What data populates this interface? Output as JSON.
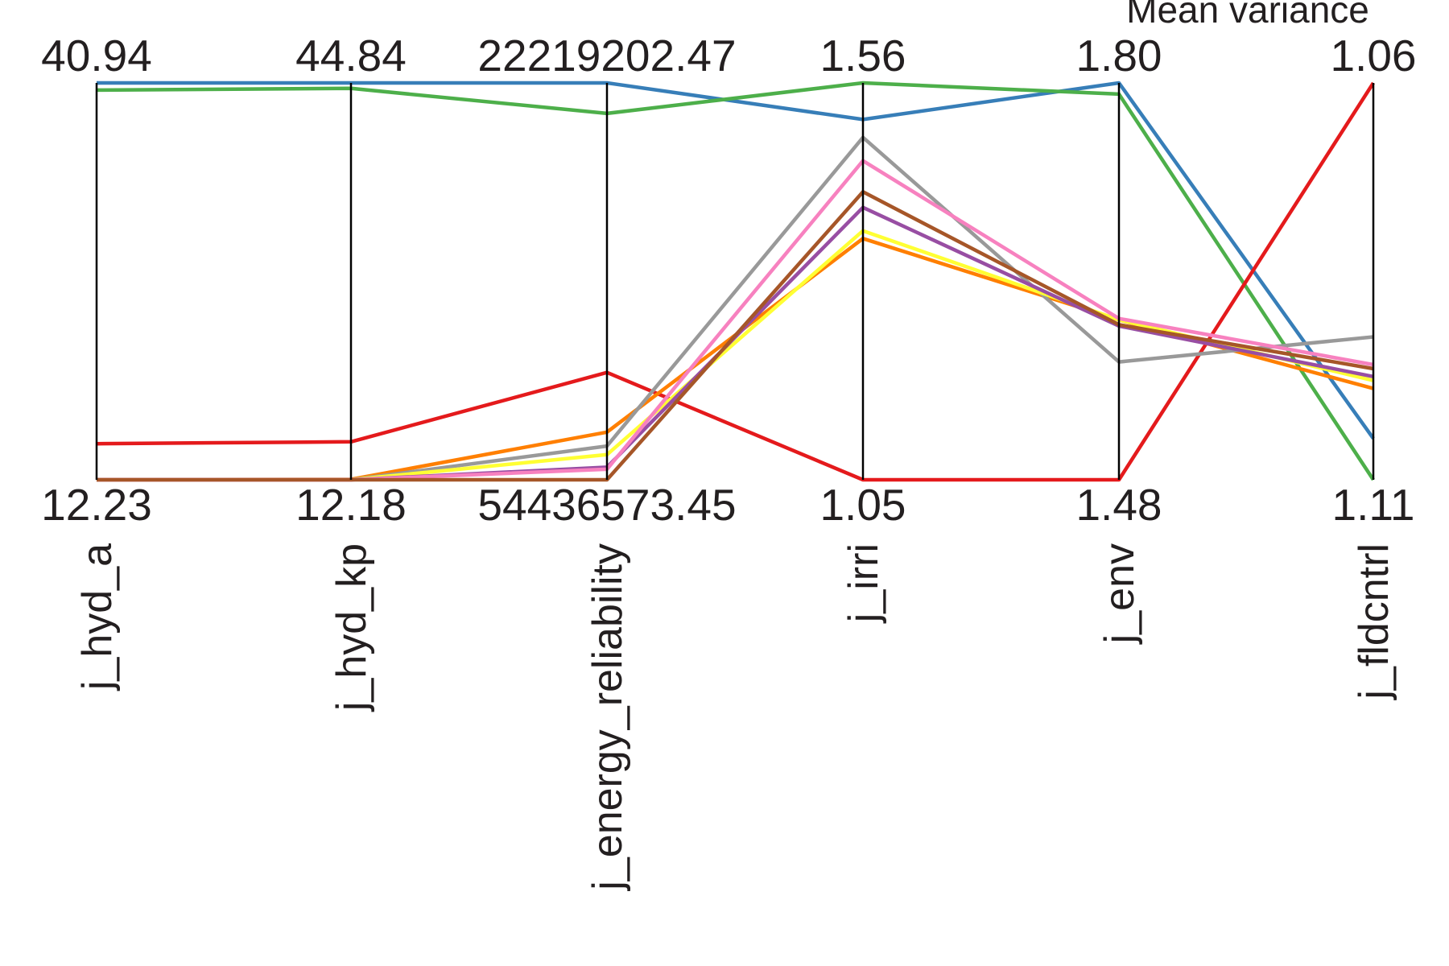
{
  "chart_data": {
    "type": "parallel-coordinates",
    "title": "Mean variance",
    "axes": [
      {
        "name": "j_hyd_a",
        "max_label": "40.94",
        "min_label": "12.23",
        "max": 40.94,
        "min": 12.23
      },
      {
        "name": "j_hyd_kp",
        "max_label": "44.84",
        "min_label": "12.18",
        "max": 44.84,
        "min": 12.18
      },
      {
        "name": "j_energy_reliability",
        "max_label": "22219202.47",
        "min_label": "54436573.45",
        "max": 22219202.47,
        "min": 54436573.45
      },
      {
        "name": "j_irri",
        "max_label": "1.56",
        "min_label": "1.05",
        "max": 1.56,
        "min": 1.05
      },
      {
        "name": "j_env",
        "max_label": "1.80",
        "min_label": "1.48",
        "max": 1.8,
        "min": 1.48
      },
      {
        "name": "j_fldcntrl",
        "max_label": "1.06",
        "min_label": "1.11",
        "max": 1.06,
        "min": 1.11
      }
    ],
    "series": [
      {
        "color": "#377eb8",
        "values": [
          40.94,
          44.84,
          22219202.47,
          1.513,
          1.8,
          1.1048
        ]
      },
      {
        "color": "#4daf4a",
        "values": [
          40.42,
          44.39,
          24694770.0,
          1.56,
          1.791,
          1.11
        ]
      },
      {
        "color": "#e41a1c",
        "values": [
          14.84,
          15.31,
          45724740.0,
          1.05,
          1.48,
          1.06
        ]
      },
      {
        "color": "#ff7f00",
        "values": [
          12.23,
          12.21,
          50567260.0,
          1.36,
          1.609,
          1.0985
        ]
      },
      {
        "color": "#999999",
        "values": [
          12.23,
          12.18,
          51696880.0,
          1.49,
          1.575,
          1.092
        ]
      },
      {
        "color": "#ffff33",
        "values": [
          12.23,
          12.18,
          52396120.0,
          1.37,
          1.609,
          1.0975
        ]
      },
      {
        "color": "#984ea3",
        "values": [
          12.23,
          12.18,
          53417980.0,
          1.4,
          1.604,
          1.097
        ]
      },
      {
        "color": "#f781bf",
        "values": [
          12.23,
          12.18,
          53579340.0,
          1.46,
          1.61,
          1.0955
        ]
      },
      {
        "color": "#a65628",
        "values": [
          12.23,
          12.18,
          54436573.45,
          1.42,
          1.605,
          1.096
        ]
      }
    ],
    "grid": false,
    "legend": "none"
  }
}
